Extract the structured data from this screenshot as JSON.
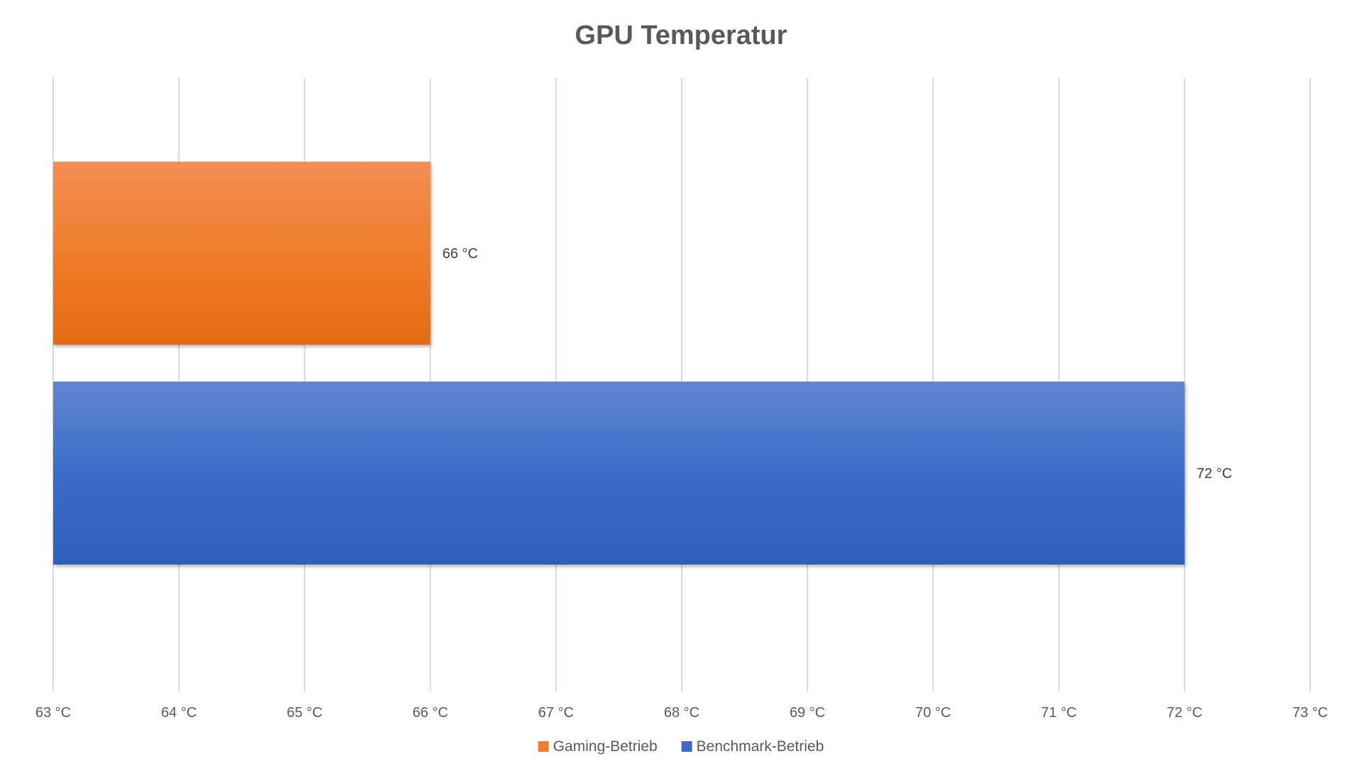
{
  "chart_data": {
    "type": "bar",
    "orientation": "horizontal",
    "title": "GPU Temperatur",
    "xlabel": "",
    "ylabel": "",
    "unit": "°C",
    "xlim": [
      63,
      73
    ],
    "ticks": [
      63,
      64,
      65,
      66,
      67,
      68,
      69,
      70,
      71,
      72,
      73
    ],
    "tick_labels": [
      "63 °C",
      "64 °C",
      "65 °C",
      "66 °C",
      "67 °C",
      "68 °C",
      "69 °C",
      "70 °C",
      "71 °C",
      "72 °C",
      "73 °C"
    ],
    "grid": true,
    "legend_position": "bottom",
    "series": [
      {
        "name": "Gaming-Betrieb",
        "value": 66,
        "label": "66 °C",
        "color": "#f07d2a",
        "color_top": "#f28e55",
        "color_bottom": "#e56b15"
      },
      {
        "name": "Benchmark-Betrieb",
        "value": 72,
        "label": "72 °C",
        "color": "#3a6cc9",
        "color_top": "#6086d0",
        "color_bottom": "#2e60bb"
      }
    ]
  }
}
